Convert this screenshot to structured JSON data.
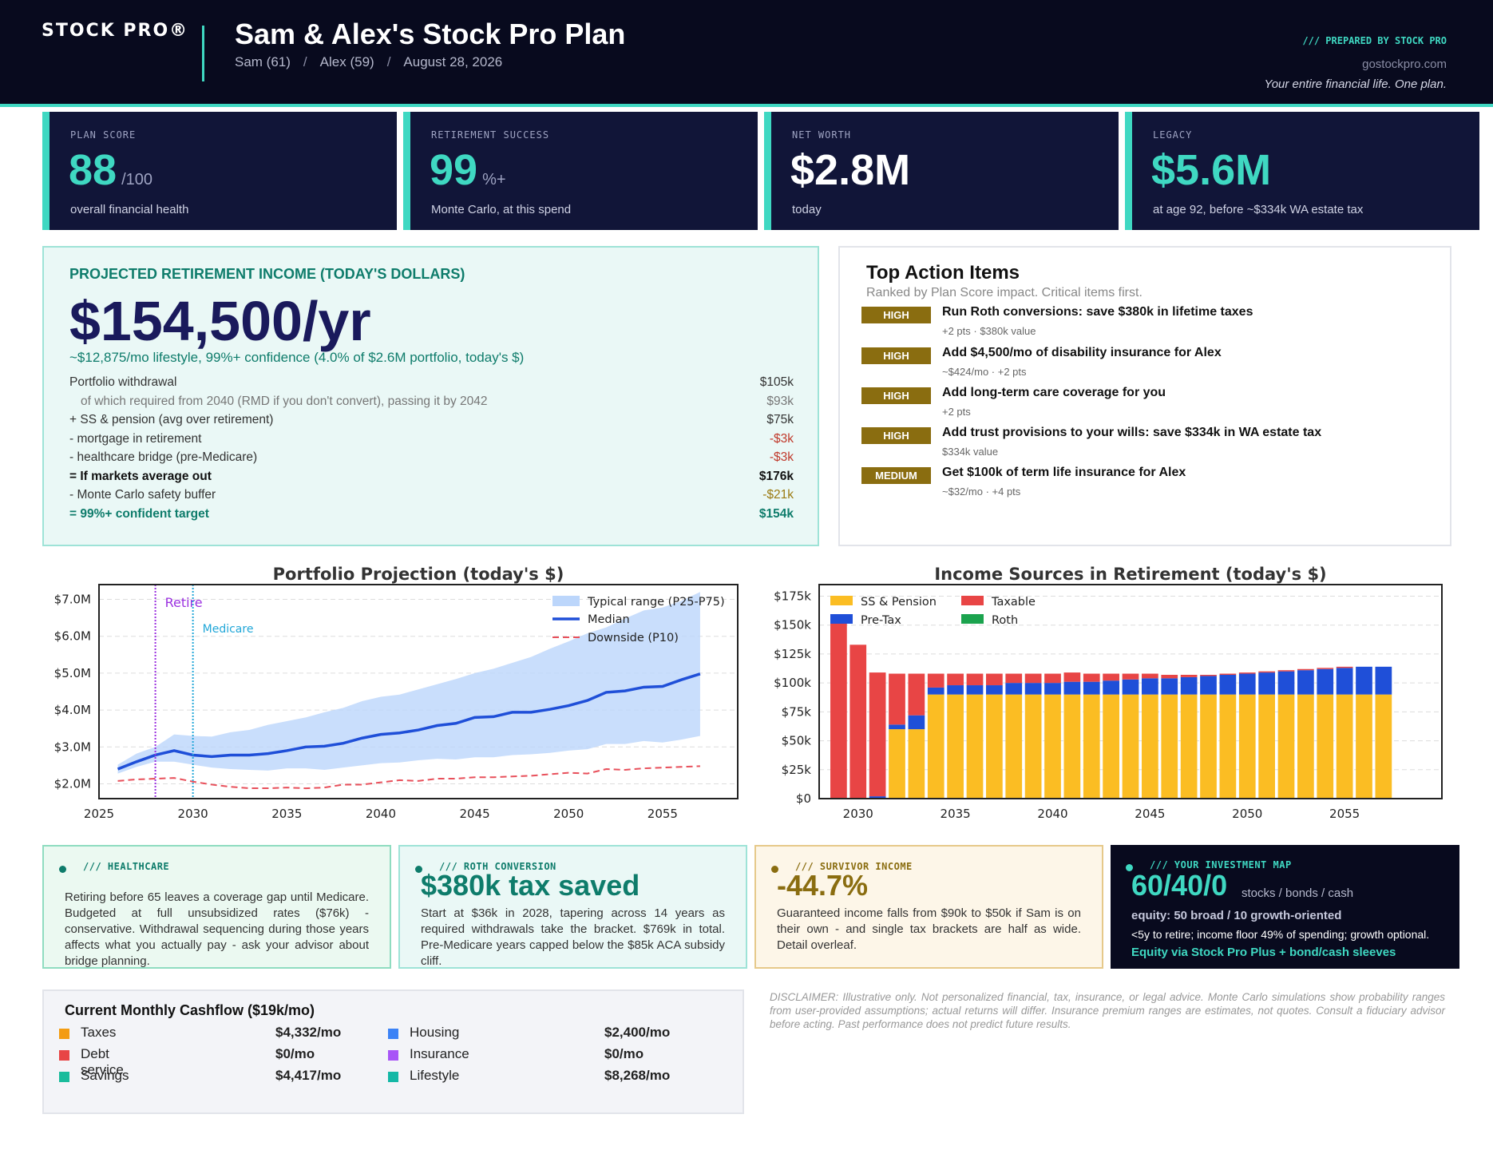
{
  "header": {
    "logo": "STOCK PRO®",
    "title": "Sam & Alex's Stock Pro Plan",
    "subtitle": [
      "Sam (61)",
      "Alex (59)",
      "August 28, 2026"
    ],
    "separator": "/",
    "prepared_by": "/// PREPARED BY STOCK PRO",
    "site": "gostockpro.com",
    "tagline": "Your entire financial life. One plan."
  },
  "kpis": [
    {
      "label": "PLAN SCORE",
      "value": "88",
      "unit": "/100",
      "desc": "overall financial health",
      "color": "#3fd8c2"
    },
    {
      "label": "RETIREMENT SUCCESS",
      "value": "99",
      "unit": "%+",
      "desc": "Monte Carlo, at this spend",
      "color": "#3fd8c2"
    },
    {
      "label": "NET WORTH",
      "value": "$2.8M",
      "unit": "",
      "desc": "today",
      "color": "#ffffff"
    },
    {
      "label": "LEGACY",
      "value": "$5.6M",
      "unit": "",
      "desc": "at age 92, before ~$334k WA estate tax",
      "color": "#3fd8c2"
    }
  ],
  "income": {
    "title": "PROJECTED RETIREMENT INCOME (TODAY'S DOLLARS)",
    "headline": "$154,500/yr",
    "note": "~$12,875/mo lifestyle, 99%+ confidence (4.0% of $2.6M portfolio, today's $)",
    "rows": [
      {
        "label": "Portfolio withdrawal",
        "value": "$105k",
        "style": ""
      },
      {
        "label": "of which required from 2040 (RMD if you don't convert), passing it by 2042",
        "value": "$93k",
        "style": "indent"
      },
      {
        "label": "+ SS & pension (avg over retirement)",
        "value": "$75k",
        "style": ""
      },
      {
        "label": "- mortgage in retirement",
        "value": "-$3k",
        "style": "neg"
      },
      {
        "label": "- healthcare bridge (pre-Medicare)",
        "value": "-$3k",
        "style": "neg"
      },
      {
        "label": "= If markets average out",
        "value": "$176k",
        "style": "bold"
      },
      {
        "label": "- Monte Carlo safety buffer",
        "value": "-$21k",
        "style": "warn"
      },
      {
        "label": "= 99%+ confident target",
        "value": "$154k",
        "style": "teal"
      }
    ]
  },
  "actions": {
    "title": "Top Action Items",
    "subtitle": "Ranked by Plan Score impact. Critical items first.",
    "items": [
      {
        "badge": "HIGH",
        "title": "Run Roth conversions: save $380k in lifetime taxes",
        "sub": "+2 pts · $380k value"
      },
      {
        "badge": "HIGH",
        "title": "Add $4,500/mo of disability insurance for Alex",
        "sub": "~$424/mo · +2 pts"
      },
      {
        "badge": "HIGH",
        "title": "Add long-term care coverage for you",
        "sub": "+2 pts"
      },
      {
        "badge": "HIGH",
        "title": "Add trust provisions to your wills: save $334k in WA estate tax",
        "sub": "$334k value"
      },
      {
        "badge": "MEDIUM",
        "title": "Get $100k of term life insurance for Alex",
        "sub": "~$32/mo · +4 pts"
      }
    ]
  },
  "chart_data": [
    {
      "type": "line",
      "title": "Portfolio Projection (today's $)",
      "x": [
        2026,
        2027,
        2028,
        2029,
        2030,
        2031,
        2032,
        2033,
        2034,
        2035,
        2036,
        2037,
        2038,
        2039,
        2040,
        2041,
        2042,
        2043,
        2044,
        2045,
        2046,
        2047,
        2048,
        2049,
        2050,
        2051,
        2052,
        2053,
        2054,
        2055,
        2056,
        2057
      ],
      "series": [
        {
          "name": "Median",
          "color": "#1f4fd8",
          "values": [
            2.4,
            2.6,
            2.78,
            2.9,
            2.78,
            2.74,
            2.78,
            2.78,
            2.82,
            2.9,
            3.0,
            3.02,
            3.1,
            3.24,
            3.34,
            3.38,
            3.46,
            3.58,
            3.64,
            3.8,
            3.82,
            3.94,
            3.94,
            4.02,
            4.12,
            4.26,
            4.48,
            4.52,
            4.62,
            4.64,
            4.82,
            4.98
          ]
        },
        {
          "name": "Downside (P10)",
          "color": "#e8505b",
          "values": [
            2.08,
            2.12,
            2.14,
            2.16,
            2.06,
            1.98,
            1.92,
            1.88,
            1.88,
            1.9,
            1.88,
            1.9,
            1.98,
            1.98,
            2.04,
            2.1,
            2.08,
            2.14,
            2.14,
            2.18,
            2.18,
            2.2,
            2.22,
            2.26,
            2.3,
            2.28,
            2.4,
            2.38,
            2.42,
            2.44,
            2.46,
            2.48
          ]
        },
        {
          "name": "Typical range (P25-P75)",
          "color": "#bcd6fb",
          "low": [
            2.28,
            2.46,
            2.6,
            2.6,
            2.52,
            2.44,
            2.4,
            2.38,
            2.36,
            2.42,
            2.42,
            2.38,
            2.44,
            2.5,
            2.56,
            2.58,
            2.64,
            2.68,
            2.66,
            2.72,
            2.72,
            2.78,
            2.8,
            2.84,
            2.9,
            2.94,
            3.08,
            3.08,
            3.16,
            3.12,
            3.2,
            3.3
          ],
          "high": [
            2.52,
            2.82,
            3.0,
            3.34,
            3.3,
            3.28,
            3.4,
            3.46,
            3.6,
            3.7,
            3.8,
            3.94,
            4.06,
            4.24,
            4.36,
            4.42,
            4.56,
            4.7,
            4.84,
            5.0,
            5.12,
            5.28,
            5.44,
            5.66,
            5.86,
            6.08,
            6.24,
            6.48,
            6.7,
            6.78,
            6.96,
            7.2
          ]
        }
      ],
      "ylim": [
        1.6,
        7.4
      ],
      "xlim": [
        2025,
        2059
      ],
      "yticks": [
        "$2.0M",
        "$3.0M",
        "$4.0M",
        "$5.0M",
        "$6.0M",
        "$7.0M"
      ],
      "ytick_values": [
        2,
        3,
        4,
        5,
        6,
        7
      ],
      "xticks": [
        "2025",
        "2030",
        "2035",
        "2040",
        "2045",
        "2050",
        "2055"
      ],
      "xtick_values": [
        2025,
        2030,
        2035,
        2040,
        2045,
        2050,
        2055
      ],
      "annotations": [
        {
          "text": "Retire",
          "x": 2028,
          "color": "#9b30e0"
        },
        {
          "text": "Medicare",
          "x": 2030,
          "color": "#22a7d8"
        }
      ],
      "legend": "top-right",
      "grid": true
    },
    {
      "type": "bar",
      "stacked": true,
      "title": "Income Sources in Retirement (today's $)",
      "x": [
        2029,
        2030,
        2031,
        2032,
        2033,
        2034,
        2035,
        2036,
        2037,
        2038,
        2039,
        2040,
        2041,
        2042,
        2043,
        2044,
        2045,
        2046,
        2047,
        2048,
        2049,
        2050,
        2051,
        2052,
        2053,
        2054,
        2055,
        2056,
        2057
      ],
      "series": [
        {
          "name": "SS & Pension",
          "color": "#fbbd23",
          "values": [
            0,
            0,
            0,
            60,
            60,
            90,
            90,
            90,
            90,
            90,
            90,
            90,
            90,
            90,
            90,
            90,
            90,
            90,
            90,
            90,
            90,
            90,
            90,
            90,
            90,
            90,
            90,
            90,
            90
          ]
        },
        {
          "name": "Pre-Tax",
          "color": "#1f4fd8",
          "values": [
            0,
            0,
            2,
            4,
            12,
            6,
            8,
            8,
            8,
            10,
            10,
            10,
            11,
            11,
            12,
            13,
            14,
            14,
            15,
            16,
            17,
            18,
            19,
            20,
            21,
            22,
            23,
            24,
            24
          ]
        },
        {
          "name": "Taxable",
          "color": "#e84545",
          "values": [
            155,
            133,
            107,
            44,
            36,
            12,
            10,
            10,
            10,
            8,
            8,
            8,
            8,
            7,
            6,
            5,
            4,
            3,
            2,
            1,
            1,
            1,
            1,
            1,
            1,
            1,
            1,
            0,
            0
          ]
        },
        {
          "name": "Roth",
          "color": "#1ba34e",
          "values": [
            0,
            0,
            0,
            0,
            0,
            0,
            0,
            0,
            0,
            0,
            0,
            0,
            0,
            0,
            0,
            0,
            0,
            0,
            0,
            0,
            0,
            0,
            0,
            0,
            0,
            0,
            0,
            0,
            0
          ]
        }
      ],
      "ylim": [
        0,
        185
      ],
      "xlim": [
        2028,
        2060
      ],
      "yticks": [
        "$0",
        "$25k",
        "$50k",
        "$75k",
        "$100k",
        "$125k",
        "$150k",
        "$175k"
      ],
      "ytick_values": [
        0,
        25,
        50,
        75,
        100,
        125,
        150,
        175
      ],
      "xticks": [
        "2030",
        "2035",
        "2040",
        "2045",
        "2050",
        "2055"
      ],
      "xtick_values": [
        2030,
        2035,
        2040,
        2045,
        2050,
        2055
      ],
      "legend": "top-left",
      "grid": true
    }
  ],
  "tiles": [
    {
      "label": "/// HEALTHCARE",
      "body": "Retiring before 65 leaves a coverage gap until Medicare. Budgeted at full unsubsidized rates ($76k) - conservative. Withdrawal sequencing during those years affects what you actually pay - ask your advisor about bridge planning.",
      "color": "#0e7c6b"
    },
    {
      "label": "/// ROTH CONVERSION",
      "big": "$380k tax saved",
      "body": "Start at $36k in 2028, tapering across 14 years as required withdrawals take the bracket. $769k in total. Pre-Medicare years capped below the $85k ACA subsidy cliff.",
      "color": "#0e7c6b"
    },
    {
      "label": "/// SURVIVOR INCOME",
      "big": "-44.7%",
      "body": "Guaranteed income falls from $90k to $50k if Sam is on their own - and single tax brackets are half as wide. Detail overleaf.",
      "color": "#8a6d10"
    },
    {
      "label": "/// YOUR INVESTMENT MAP",
      "big": "60/40/0",
      "big_suffix": "stocks / bonds / cash",
      "line1": "equity: 50 broad / 10 growth-oriented",
      "line2": "<5y to retire; income floor 49% of spending; growth optional.",
      "line3": "Equity via Stock Pro Plus + bond/cash sleeves",
      "color": "#3fd8c2"
    }
  ],
  "cashflow": {
    "title": "Current Monthly Cashflow  ($19k/mo)",
    "items": [
      {
        "name": "Taxes",
        "value": "$4,332/mo",
        "color": "#f39c12"
      },
      {
        "name": "Debt service",
        "value": "$0/mo",
        "color": "#e84545"
      },
      {
        "name": "Savings",
        "value": "$4,417/mo",
        "color": "#1abc9c"
      },
      {
        "name": "Housing",
        "value": "$2,400/mo",
        "color": "#3b82f6"
      },
      {
        "name": "Insurance",
        "value": "$0/mo",
        "color": "#a855f7"
      },
      {
        "name": "Lifestyle",
        "value": "$8,268/mo",
        "color": "#14b8a6"
      }
    ]
  },
  "disclaimer": "DISCLAIMER: Illustrative only. Not personalized financial, tax, insurance, or legal advice. Monte Carlo simulations show probability ranges from user-provided assumptions; actual returns will differ. Insurance premium ranges are estimates, not quotes. Consult a fiduciary advisor before acting. Past performance does not predict future results."
}
